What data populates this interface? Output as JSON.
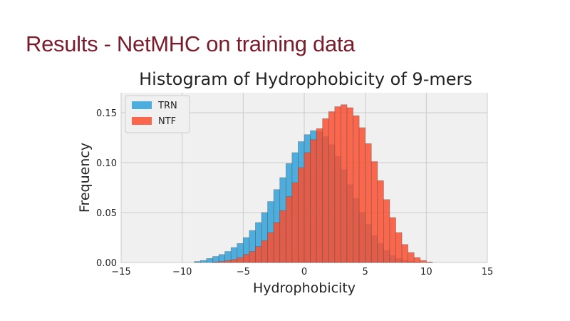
{
  "slide": {
    "title": "Results - NetMHC on training data"
  },
  "chart_data": {
    "type": "histogram",
    "title": "Histogram of Hydrophobicity of 9-mers",
    "xlabel": "Hydrophobicity",
    "ylabel": "Frequency",
    "xlim": [
      -15,
      15
    ],
    "ylim": [
      0,
      0.17
    ],
    "xticks": [
      -15,
      -10,
      -5,
      0,
      5,
      10,
      15
    ],
    "xtick_labels": [
      "−15",
      "−10",
      "−5",
      "0",
      "5",
      "10",
      "15"
    ],
    "yticks": [
      0.0,
      0.05,
      0.1,
      0.15
    ],
    "ytick_labels": [
      "0.00",
      "0.05",
      "0.10",
      "0.15"
    ],
    "grid": true,
    "legend_position": "top-left",
    "bin_edges": [
      -9.0,
      -8.5,
      -8.0,
      -7.5,
      -7.0,
      -6.5,
      -6.0,
      -5.5,
      -5.0,
      -4.5,
      -4.0,
      -3.5,
      -3.0,
      -2.5,
      -2.0,
      -1.5,
      -1.0,
      -0.5,
      0.0,
      0.5,
      1.0,
      1.5,
      2.0,
      2.5,
      3.0,
      3.5,
      4.0,
      4.5,
      5.0,
      5.5,
      6.0,
      6.5,
      7.0,
      7.5,
      8.0,
      8.5,
      9.0,
      9.5,
      10.0,
      10.5
    ],
    "series": [
      {
        "name": "TRN",
        "color": "#30a2da",
        "values": [
          0.001,
          0.002,
          0.004,
          0.006,
          0.008,
          0.011,
          0.015,
          0.019,
          0.025,
          0.032,
          0.04,
          0.05,
          0.061,
          0.073,
          0.085,
          0.099,
          0.11,
          0.121,
          0.128,
          0.132,
          0.131,
          0.126,
          0.118,
          0.106,
          0.093,
          0.078,
          0.064,
          0.05,
          0.038,
          0.027,
          0.019,
          0.012,
          0.007,
          0.004,
          0.002,
          0.001,
          0.0005,
          0.0,
          0.0
        ]
      },
      {
        "name": "NTF",
        "color": "#fc4f30",
        "values": [
          0.0,
          0.0,
          0.0,
          0.0005,
          0.001,
          0.002,
          0.003,
          0.005,
          0.008,
          0.011,
          0.016,
          0.022,
          0.03,
          0.04,
          0.052,
          0.066,
          0.08,
          0.095,
          0.11,
          0.123,
          0.134,
          0.144,
          0.151,
          0.156,
          0.158,
          0.155,
          0.147,
          0.135,
          0.119,
          0.101,
          0.082,
          0.063,
          0.045,
          0.03,
          0.018,
          0.01,
          0.005,
          0.002,
          0.0005
        ]
      }
    ]
  }
}
